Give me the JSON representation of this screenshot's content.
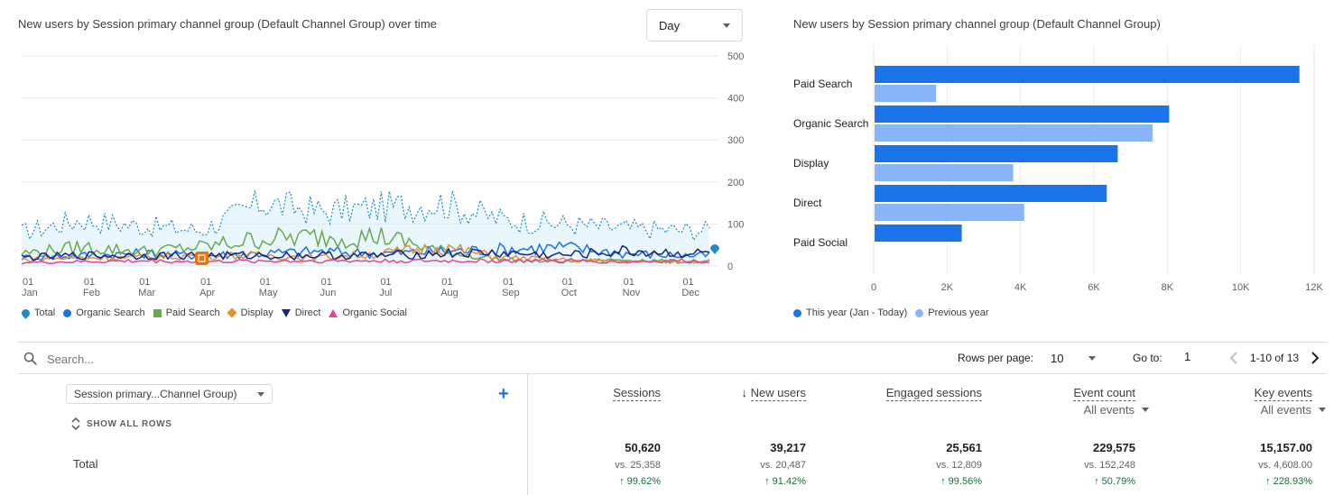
{
  "line_card": {
    "title": "New users by Session primary channel group (Default Channel Group) over time",
    "granularity": "Day",
    "y_ticks": [
      "500",
      "400",
      "300",
      "200",
      "100",
      "0"
    ],
    "x_ticks": [
      {
        "day": "01",
        "month": "Jan"
      },
      {
        "day": "01",
        "month": "Feb"
      },
      {
        "day": "01",
        "month": "Mar"
      },
      {
        "day": "01",
        "month": "Apr"
      },
      {
        "day": "01",
        "month": "May"
      },
      {
        "day": "01",
        "month": "Jun"
      },
      {
        "day": "01",
        "month": "Jul"
      },
      {
        "day": "01",
        "month": "Aug"
      },
      {
        "day": "01",
        "month": "Sep"
      },
      {
        "day": "01",
        "month": "Oct"
      },
      {
        "day": "01",
        "month": "Nov"
      },
      {
        "day": "01",
        "month": "Dec"
      }
    ],
    "legend": [
      {
        "label": "Total",
        "color": "#1e8bc3",
        "marker": "pin"
      },
      {
        "label": "Organic Search",
        "color": "#1a73e8",
        "marker": "circle"
      },
      {
        "label": "Paid Search",
        "color": "#6aa84f",
        "marker": "square"
      },
      {
        "label": "Display",
        "color": "#e69138",
        "marker": "diamond"
      },
      {
        "label": "Direct",
        "color": "#1a237e",
        "marker": "triangle-down"
      },
      {
        "label": "Organic Social",
        "color": "#e8448f",
        "marker": "triangle-up"
      }
    ],
    "annotation_icon": "annotation-icon"
  },
  "bar_card": {
    "title": "New users by Session primary channel group (Default Channel Group)",
    "x_ticks": [
      "0",
      "2K",
      "4K",
      "6K",
      "8K",
      "10K",
      "12K"
    ],
    "legend": [
      {
        "label": "This year (Jan - Today)",
        "color": "#1a73e8"
      },
      {
        "label": "Previous year",
        "color": "#8ab4f8"
      }
    ]
  },
  "chart_data": [
    {
      "type": "line",
      "title": "New users by Session primary channel group (Default Channel Group) over time",
      "ylim": [
        0,
        500
      ],
      "x": [
        "Jan",
        "Feb",
        "Mar",
        "Apr",
        "May",
        "Jun",
        "Jul",
        "Aug",
        "Sep",
        "Oct",
        "Nov",
        "Dec"
      ],
      "series": [
        {
          "name": "Total",
          "values": [
            80,
            110,
            95,
            85,
            150,
            130,
            140,
            150,
            110,
            100,
            90,
            85
          ],
          "color": "#1e8bc3"
        },
        {
          "name": "Organic Search",
          "values": [
            20,
            25,
            30,
            25,
            30,
            35,
            30,
            35,
            40,
            45,
            30,
            25
          ],
          "color": "#1a73e8"
        },
        {
          "name": "Paid Search",
          "values": [
            30,
            45,
            35,
            45,
            65,
            70,
            70,
            35,
            15,
            10,
            15,
            10
          ],
          "color": "#6aa84f"
        },
        {
          "name": "Display",
          "values": [
            15,
            20,
            20,
            25,
            25,
            20,
            30,
            45,
            20,
            15,
            10,
            10
          ],
          "color": "#e69138"
        },
        {
          "name": "Direct",
          "values": [
            20,
            25,
            25,
            25,
            25,
            25,
            25,
            30,
            30,
            25,
            35,
            30
          ],
          "color": "#1a237e"
        },
        {
          "name": "Organic Social",
          "values": [
            8,
            10,
            12,
            10,
            12,
            12,
            12,
            12,
            12,
            12,
            10,
            12
          ],
          "color": "#e8448f"
        }
      ]
    },
    {
      "type": "bar",
      "title": "New users by Session primary channel group (Default Channel Group)",
      "categories": [
        "Paid Search",
        "Organic Search",
        "Display",
        "Direct",
        "Paid Social"
      ],
      "xlim": [
        0,
        12000
      ],
      "series": [
        {
          "name": "This year (Jan - Today)",
          "values": [
            11600,
            8050,
            6650,
            6350,
            2400
          ],
          "color": "#1a73e8"
        },
        {
          "name": "Previous year",
          "values": [
            1700,
            7600,
            3800,
            4100,
            0
          ],
          "color": "#8ab4f8"
        }
      ]
    }
  ],
  "table_toolbar": {
    "search_placeholder": "Search...",
    "rows_per_page_label": "Rows per page:",
    "rows_per_page_value": "10",
    "goto_label": "Go to:",
    "goto_value": "1",
    "pagination_text": "1-10 of 13"
  },
  "table": {
    "dimension_selector": "Session primary...Channel Group)",
    "show_all_rows": "SHOW ALL ROWS",
    "total_label": "Total",
    "columns": [
      {
        "label": "Sessions",
        "sorted": false,
        "sub": null,
        "value": "50,620",
        "vs": "vs. 25,358",
        "pct": "↑ 99.62%"
      },
      {
        "label": "New users",
        "sorted": true,
        "sub": null,
        "value": "39,217",
        "vs": "vs. 20,487",
        "pct": "↑ 91.42%"
      },
      {
        "label": "Engaged sessions",
        "sorted": false,
        "sub": null,
        "value": "25,561",
        "vs": "vs. 12,809",
        "pct": "↑ 99.56%"
      },
      {
        "label": "Event count",
        "sorted": false,
        "sub": "All events",
        "value": "229,575",
        "vs": "vs. 152,248",
        "pct": "↑ 50.79%"
      },
      {
        "label": "Key events",
        "sorted": false,
        "sub": "All events",
        "value": "15,157.00",
        "vs": "vs. 4,608.00",
        "pct": "↑ 228.93%"
      }
    ]
  }
}
